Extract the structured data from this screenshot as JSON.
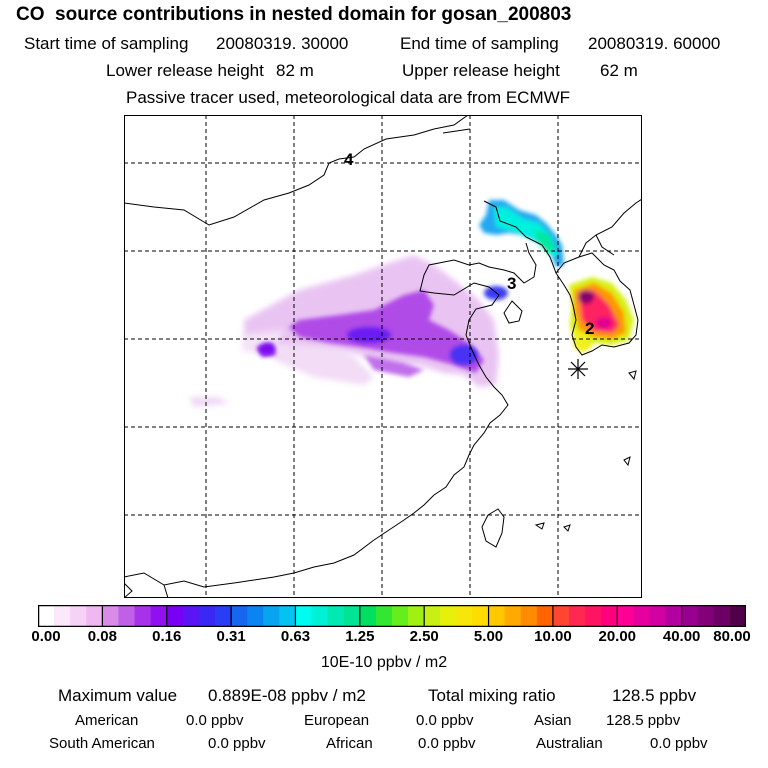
{
  "header": {
    "title": "CO  source contributions in nested domain for gosan_200803",
    "start_label": "Start time of sampling",
    "start_value": "20080319. 30000",
    "end_label": "End time of sampling",
    "end_value": "20080319. 60000",
    "lower_label": "Lower release height",
    "lower_value": "82 m",
    "upper_label": "Upper release height",
    "upper_value": "62 m",
    "note": "Passive tracer used, meteorological data are from ECMWF"
  },
  "map": {
    "labels": [
      "4",
      "3",
      "2"
    ],
    "marker": "station-marker"
  },
  "colorbar": {
    "ticks": [
      "0.00",
      "0.08",
      "0.16",
      "0.31",
      "0.63",
      "1.25",
      "2.50",
      "5.00",
      "10.00",
      "20.00",
      "40.00",
      "80.00"
    ],
    "colors": [
      "#ffffff",
      "#fbe8fb",
      "#f6d2f6",
      "#f0b8f0",
      "#d88ce8",
      "#c060e6",
      "#a832ea",
      "#9010f0",
      "#7a00f5",
      "#5a14f5",
      "#3a28f5",
      "#2a3cf5",
      "#1666f0",
      "#0a84f0",
      "#08a4f0",
      "#06c2f0",
      "#00fcf0",
      "#00f0d6",
      "#00e8b4",
      "#00e496",
      "#00e060",
      "#32e632",
      "#64ee1e",
      "#a0f014",
      "#c8f014",
      "#e6f00a",
      "#f6e60a",
      "#ffdc00",
      "#ffc800",
      "#ffaa00",
      "#ff8c00",
      "#ff6400",
      "#ff4632",
      "#ff2850",
      "#ff1464",
      "#ff007e",
      "#ff0096",
      "#e6009e",
      "#d200a0",
      "#b400a0",
      "#9a0090",
      "#820078",
      "#6c0064",
      "#500048"
    ],
    "units": "10E-10 ppbv / m2"
  },
  "stats": {
    "max_label": "Maximum value",
    "max_value": "0.889E-08 ppbv / m2",
    "total_label": "Total mixing ratio",
    "total_value": "128.5 ppbv",
    "american_label": "American",
    "american_value": "0.0 ppbv",
    "european_label": "European",
    "european_value": "0.0 ppbv",
    "asian_label": "Asian",
    "asian_value": "128.5 ppbv",
    "south_american_label": "South American",
    "south_american_value": "0.0 ppbv",
    "african_label": "African",
    "african_value": "0.0 ppbv",
    "australian_label": "Australian",
    "australian_value": "0.0 ppbv"
  }
}
